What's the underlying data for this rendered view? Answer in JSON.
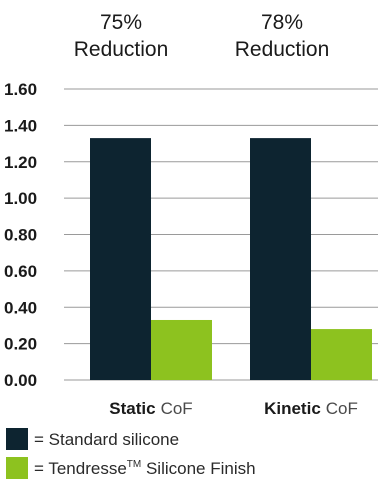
{
  "chart_data": {
    "type": "bar",
    "categories": [
      {
        "bold": "Static",
        "rest": "CoF"
      },
      {
        "bold": "Kinetic",
        "rest": "CoF"
      }
    ],
    "annotations": [
      {
        "line1": "75%",
        "line2": "Reduction"
      },
      {
        "line1": "78%",
        "line2": "Reduction"
      }
    ],
    "series": [
      {
        "name": "Standard silicone",
        "color": "#0d2430",
        "values": [
          1.33,
          1.33
        ]
      },
      {
        "name": "Tendresse™ Silicone Finish",
        "color": "#8dc21f",
        "values": [
          0.33,
          0.28
        ]
      }
    ],
    "legend": [
      {
        "prefix": "= ",
        "text": "Standard silicone",
        "sup": "",
        "suffix": ""
      },
      {
        "prefix": "= ",
        "text": "Tendresse",
        "sup": "TM",
        "suffix": " Silicone Finish"
      }
    ],
    "ylim": [
      0,
      1.6
    ],
    "yticks": [
      "0.00",
      "0.20",
      "0.40",
      "0.60",
      "0.80",
      "1.00",
      "1.20",
      "1.40",
      "1.60"
    ],
    "grid": true,
    "legend_position": "bottom-left"
  }
}
